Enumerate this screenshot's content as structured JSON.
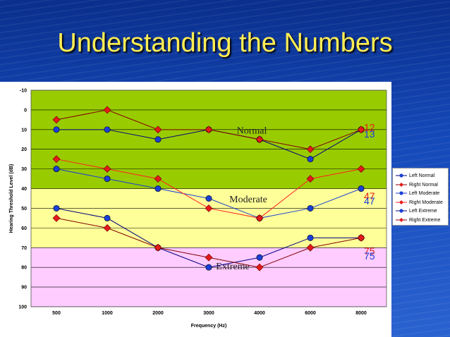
{
  "title": "Understanding the Numbers",
  "chart_data": {
    "type": "line",
    "categories": [
      "500",
      "1000",
      "2000",
      "3000",
      "4000",
      "6000",
      "8000"
    ],
    "xlabel": "Frequency (Hz)",
    "ylabel": "Hearing Threshold Level (dB)",
    "ylim": [
      -10,
      100
    ],
    "y_inverted": true,
    "yticks": [
      -10,
      0,
      10,
      20,
      30,
      40,
      50,
      60,
      70,
      80,
      90,
      100
    ],
    "grid": true,
    "legend_position": "right",
    "zones": [
      {
        "label": "Normal",
        "from": -10,
        "to": 40,
        "color": "#99cc00"
      },
      {
        "label": "Moderate",
        "from": 40,
        "to": 70,
        "color": "#ffff99"
      },
      {
        "label": "Extreme",
        "from": 70,
        "to": 100,
        "color": "#ffccff"
      }
    ],
    "series": [
      {
        "name": "Left Normal",
        "marker": "circle",
        "color": "#1a3fd6",
        "line_color": "#000080",
        "values": [
          10,
          10,
          15,
          10,
          15,
          25,
          10
        ]
      },
      {
        "name": "Right Normal",
        "marker": "diamond",
        "color": "#e41a1a",
        "line_color": "#800000",
        "values": [
          5,
          0,
          10,
          10,
          15,
          20,
          10
        ]
      },
      {
        "name": "Left Moderate",
        "marker": "circle",
        "color": "#1a3fd6",
        "line_color": "#1a3fd6",
        "values": [
          30,
          35,
          40,
          45,
          55,
          50,
          40
        ]
      },
      {
        "name": "Right Moderate",
        "marker": "diamond",
        "color": "#e41a1a",
        "line_color": "#ff2020",
        "values": [
          25,
          30,
          35,
          50,
          55,
          35,
          30
        ]
      },
      {
        "name": "Left Extreme",
        "marker": "circle",
        "color": "#1a3fd6",
        "line_color": "#000080",
        "values": [
          50,
          55,
          70,
          80,
          75,
          65,
          65
        ]
      },
      {
        "name": "Right Extreme",
        "marker": "diamond",
        "color": "#e41a1a",
        "line_color": "#800000",
        "values": [
          55,
          60,
          70,
          75,
          80,
          70,
          65
        ]
      }
    ],
    "annotations": [
      {
        "text": "12",
        "color": "#e41a1a",
        "y": 12
      },
      {
        "text": "13",
        "color": "#1a3fd6",
        "y": 13
      },
      {
        "text": "47",
        "color": "#e41a1a",
        "y": 47
      },
      {
        "text": "47",
        "color": "#1a3fd6",
        "y": 47
      },
      {
        "text": "75",
        "color": "#e41a1a",
        "y": 75
      },
      {
        "text": "75",
        "color": "#1a3fd6",
        "y": 75
      }
    ]
  }
}
